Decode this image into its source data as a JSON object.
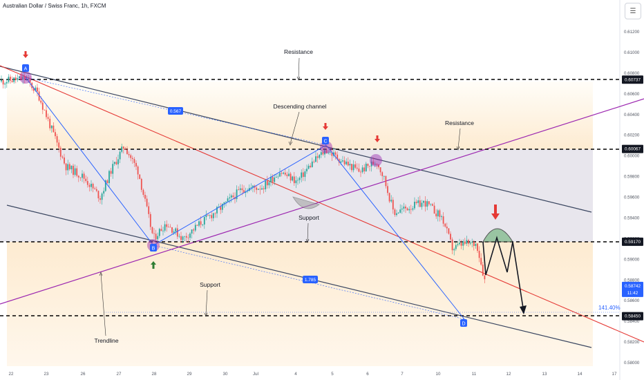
{
  "header": {
    "symbol_title": "Australian Dollar / Swiss Franc, 1h, FXCM",
    "menu_icon": "hamburger-menu-icon"
  },
  "chart_data": {
    "type": "candlestick",
    "symbol": "Australian Dollar / Swiss Franc",
    "timeframe": "1h",
    "source": "FXCM",
    "x_ticks": [
      "22",
      "23",
      "26",
      "27",
      "28",
      "29",
      "30",
      "Jul",
      "4",
      "5",
      "6",
      "7",
      "10",
      "11",
      "12",
      "13",
      "14",
      "17"
    ],
    "y_ticks": [
      "0.61200",
      "0.61000",
      "0.60800",
      "0.60600",
      "0.60400",
      "0.60200",
      "0.60000",
      "0.59800",
      "0.59600",
      "0.59400",
      "0.59200",
      "0.59000",
      "0.58800",
      "0.58600",
      "0.58400",
      "0.58200",
      "0.58000"
    ],
    "ylim": [
      0.5795,
      0.613
    ],
    "price_badges": [
      {
        "value": "0.60737",
        "lines": [
          "0.60737"
        ],
        "style": "black"
      },
      {
        "value": "0.60067",
        "lines": [
          "0.60067"
        ],
        "style": "black"
      },
      {
        "value": "0.59170",
        "lines": [
          "0.59170"
        ],
        "style": "black"
      },
      {
        "value": "0.58742",
        "lines": [
          "0.58742",
          "11:42"
        ],
        "style": "blue"
      },
      {
        "value": "0.58450",
        "lines": [
          "0.58450"
        ],
        "style": "black"
      }
    ],
    "annotations": {
      "resistance_1": "Resistance",
      "resistance_2": "Resistance",
      "descending_channel": "Descending channel",
      "support_1": "Support",
      "support_2": "Support",
      "trendline": "Trendline",
      "fib_ext": "141.40%",
      "pattern_ratio_1": "0.567",
      "pattern_ratio_2": "1.785",
      "point_a": "A",
      "point_b": "B",
      "point_c": "C",
      "point_d": "D"
    },
    "colors": {
      "bull": "#26a69a",
      "bear": "#ef5350",
      "channel_line": "#3a4660",
      "trendline_purple": "#9c27b0",
      "red_line": "#e53935",
      "pattern_blue": "#2962ff",
      "zone_gray": "#dfdff0",
      "zone_orange": "#fff0d8",
      "badge_black": "#131722",
      "badge_blue": "#2962ff"
    }
  }
}
